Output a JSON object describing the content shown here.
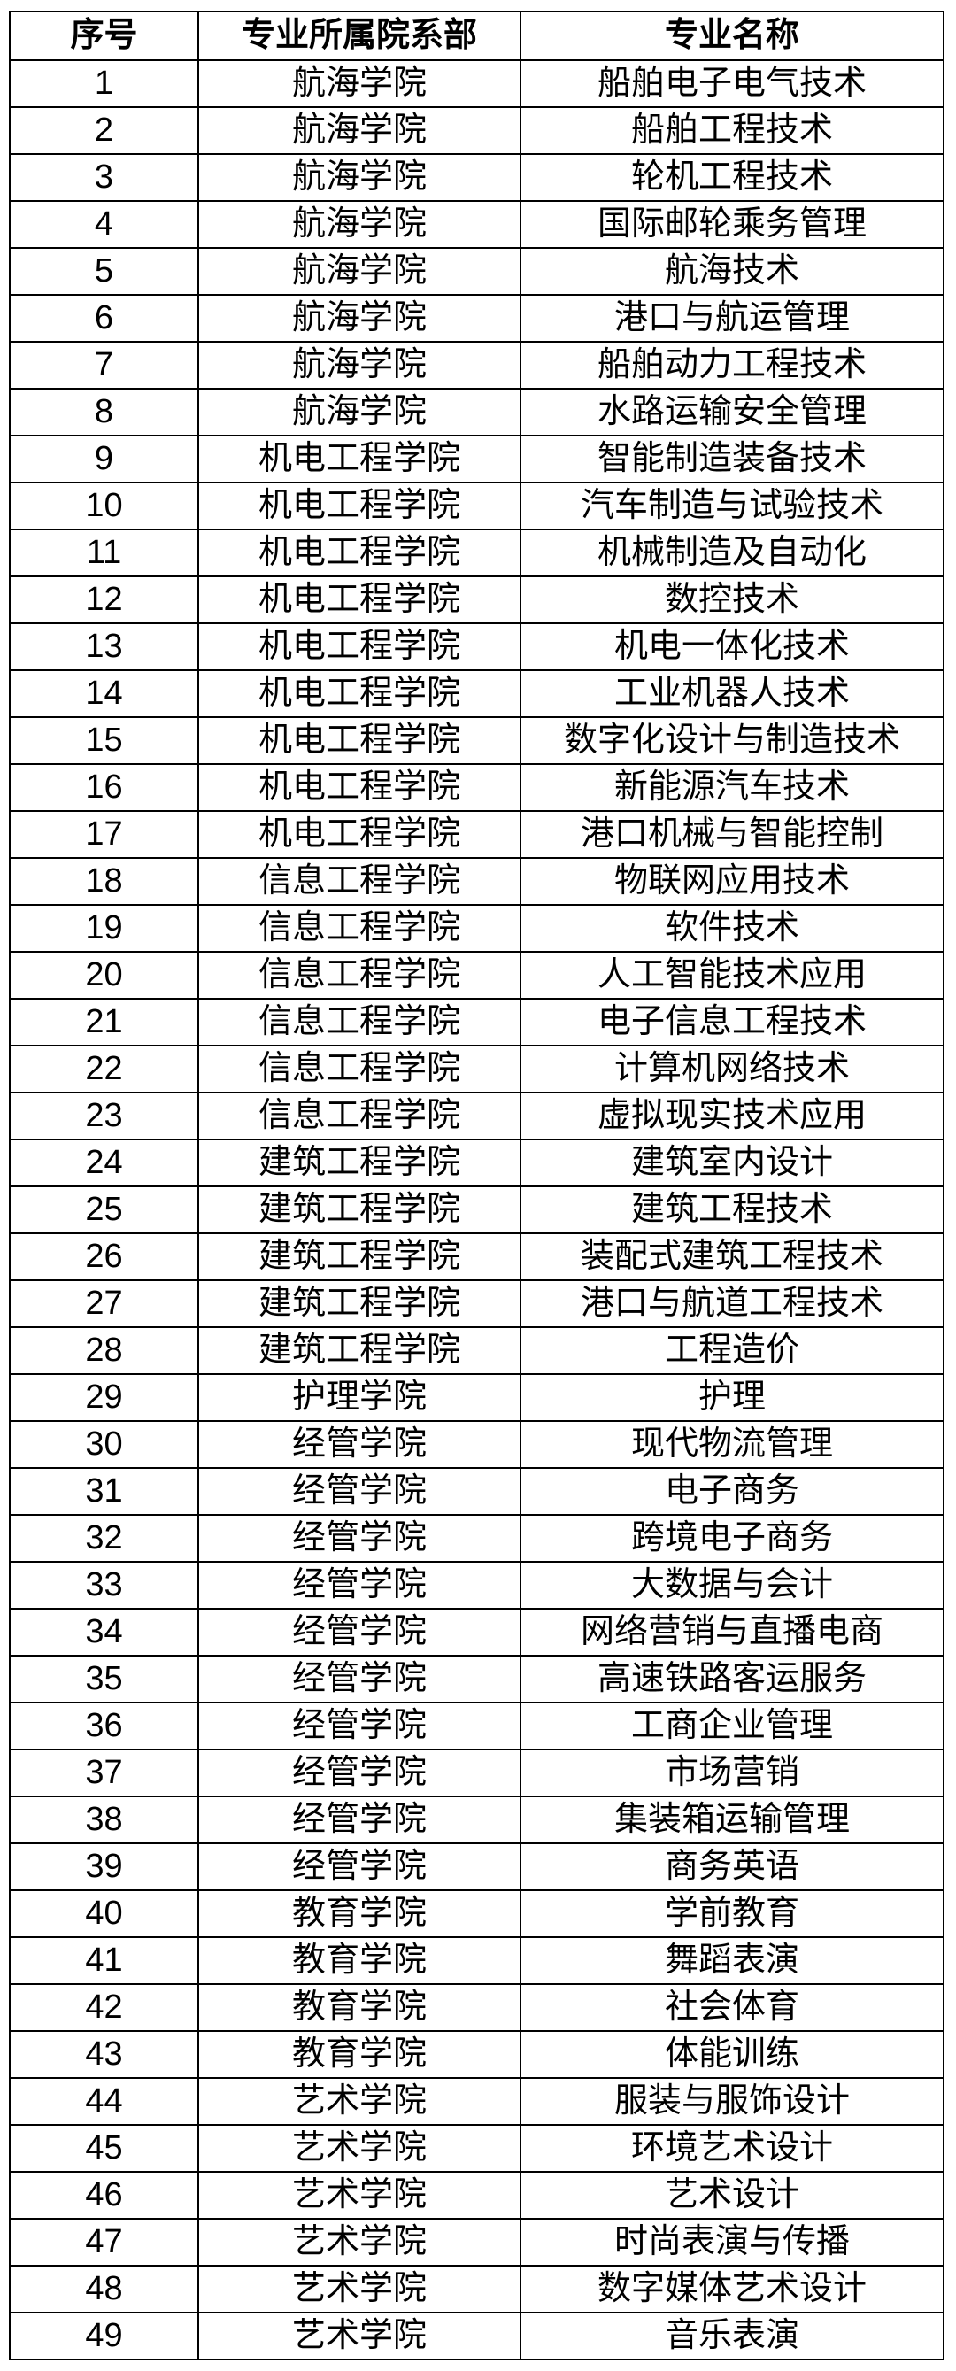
{
  "table": {
    "headers": [
      "序号",
      "专业所属院系部",
      "专业名称"
    ],
    "rows": [
      [
        "1",
        "航海学院",
        "船舶电子电气技术"
      ],
      [
        "2",
        "航海学院",
        "船舶工程技术"
      ],
      [
        "3",
        "航海学院",
        "轮机工程技术"
      ],
      [
        "4",
        "航海学院",
        "国际邮轮乘务管理"
      ],
      [
        "5",
        "航海学院",
        "航海技术"
      ],
      [
        "6",
        "航海学院",
        "港口与航运管理"
      ],
      [
        "7",
        "航海学院",
        "船舶动力工程技术"
      ],
      [
        "8",
        "航海学院",
        "水路运输安全管理"
      ],
      [
        "9",
        "机电工程学院",
        "智能制造装备技术"
      ],
      [
        "10",
        "机电工程学院",
        "汽车制造与试验技术"
      ],
      [
        "11",
        "机电工程学院",
        "机械制造及自动化"
      ],
      [
        "12",
        "机电工程学院",
        "数控技术"
      ],
      [
        "13",
        "机电工程学院",
        "机电一体化技术"
      ],
      [
        "14",
        "机电工程学院",
        "工业机器人技术"
      ],
      [
        "15",
        "机电工程学院",
        "数字化设计与制造技术"
      ],
      [
        "16",
        "机电工程学院",
        "新能源汽车技术"
      ],
      [
        "17",
        "机电工程学院",
        "港口机械与智能控制"
      ],
      [
        "18",
        "信息工程学院",
        "物联网应用技术"
      ],
      [
        "19",
        "信息工程学院",
        "软件技术"
      ],
      [
        "20",
        "信息工程学院",
        "人工智能技术应用"
      ],
      [
        "21",
        "信息工程学院",
        "电子信息工程技术"
      ],
      [
        "22",
        "信息工程学院",
        "计算机网络技术"
      ],
      [
        "23",
        "信息工程学院",
        "虚拟现实技术应用"
      ],
      [
        "24",
        "建筑工程学院",
        "建筑室内设计"
      ],
      [
        "25",
        "建筑工程学院",
        "建筑工程技术"
      ],
      [
        "26",
        "建筑工程学院",
        "装配式建筑工程技术"
      ],
      [
        "27",
        "建筑工程学院",
        "港口与航道工程技术"
      ],
      [
        "28",
        "建筑工程学院",
        "工程造价"
      ],
      [
        "29",
        "护理学院",
        "护理"
      ],
      [
        "30",
        "经管学院",
        "现代物流管理"
      ],
      [
        "31",
        "经管学院",
        "电子商务"
      ],
      [
        "32",
        "经管学院",
        "跨境电子商务"
      ],
      [
        "33",
        "经管学院",
        "大数据与会计"
      ],
      [
        "34",
        "经管学院",
        "网络营销与直播电商"
      ],
      [
        "35",
        "经管学院",
        "高速铁路客运服务"
      ],
      [
        "36",
        "经管学院",
        "工商企业管理"
      ],
      [
        "37",
        "经管学院",
        "市场营销"
      ],
      [
        "38",
        "经管学院",
        "集装箱运输管理"
      ],
      [
        "39",
        "经管学院",
        "商务英语"
      ],
      [
        "40",
        "教育学院",
        "学前教育"
      ],
      [
        "41",
        "教育学院",
        "舞蹈表演"
      ],
      [
        "42",
        "教育学院",
        "社会体育"
      ],
      [
        "43",
        "教育学院",
        "体能训练"
      ],
      [
        "44",
        "艺术学院",
        "服装与服饰设计"
      ],
      [
        "45",
        "艺术学院",
        "环境艺术设计"
      ],
      [
        "46",
        "艺术学院",
        "艺术设计"
      ],
      [
        "47",
        "艺术学院",
        "时尚表演与传播"
      ],
      [
        "48",
        "艺术学院",
        "数字媒体艺术设计"
      ],
      [
        "49",
        "艺术学院",
        "音乐表演"
      ]
    ],
    "colors": {
      "border": "#000000",
      "text": "#000000",
      "background": "#ffffff"
    }
  }
}
